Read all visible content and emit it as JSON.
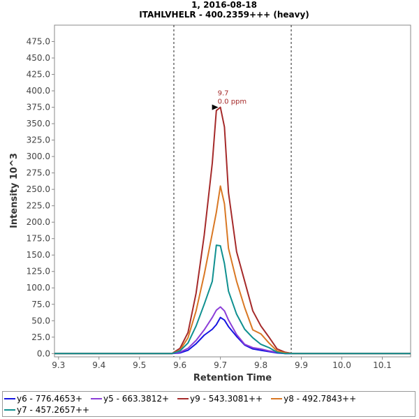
{
  "chart_data": {
    "type": "line",
    "title": "1, 2016-08-18",
    "subtitle": "ITAHLVHELR - 400.2359+++ (heavy)",
    "xlabel": "Retention Time",
    "ylabel": "Intensity 10^3",
    "xlim": [
      9.29,
      10.17
    ],
    "ylim": [
      -5,
      500
    ],
    "xticks": [
      "9.3",
      "9.4",
      "9.5",
      "9.6",
      "9.7",
      "9.8",
      "9.9",
      "10.0",
      "10.1"
    ],
    "yticks": [
      "0.0",
      "25.0",
      "50.0",
      "75.0",
      "100.0",
      "125.0",
      "150.0",
      "175.0",
      "200.0",
      "225.0",
      "250.0",
      "275.0",
      "300.0",
      "325.0",
      "350.0",
      "375.0",
      "400.0",
      "425.0",
      "450.0",
      "475.0"
    ],
    "grid": false,
    "legend_position": "bottom",
    "boundaries": [
      9.585,
      9.875
    ],
    "annotation": {
      "rt": "9.7",
      "ppm": "0.0 ppm",
      "x": 9.7,
      "y": 375
    },
    "x": [
      9.29,
      9.58,
      9.6,
      9.62,
      9.64,
      9.66,
      9.68,
      9.69,
      9.7,
      9.71,
      9.72,
      9.74,
      9.76,
      9.78,
      9.8,
      9.82,
      9.84,
      9.86,
      9.88,
      10.17
    ],
    "series": [
      {
        "name": "y6 - 776.4653+",
        "color": "#1515e0",
        "values": [
          0,
          0,
          1,
          5,
          15,
          28,
          37,
          44,
          55,
          51,
          41,
          26,
          13,
          7,
          5,
          3,
          1,
          0,
          0,
          0
        ]
      },
      {
        "name": "y5 - 663.3812+",
        "color": "#8c3fd8",
        "values": [
          0,
          0,
          2,
          8,
          20,
          36,
          55,
          66,
          71,
          65,
          51,
          29,
          14,
          9,
          7,
          4,
          2,
          0,
          0,
          0
        ]
      },
      {
        "name": "y9 - 543.3081++",
        "color": "#a52a2a",
        "values": [
          0,
          0,
          8,
          32,
          92,
          180,
          290,
          370,
          375,
          345,
          245,
          155,
          110,
          65,
          42,
          25,
          7,
          2,
          0,
          0
        ]
      },
      {
        "name": "y8 - 492.7843++",
        "color": "#d97824",
        "values": [
          0,
          0,
          5,
          24,
          65,
          120,
          183,
          215,
          255,
          228,
          160,
          110,
          70,
          36,
          30,
          16,
          4,
          1,
          0,
          0
        ]
      },
      {
        "name": "y7 - 457.2657++",
        "color": "#0f9090",
        "values": [
          0,
          0,
          4,
          16,
          42,
          75,
          110,
          165,
          164,
          137,
          95,
          60,
          37,
          24,
          14,
          9,
          2,
          0,
          0,
          0
        ]
      }
    ]
  }
}
